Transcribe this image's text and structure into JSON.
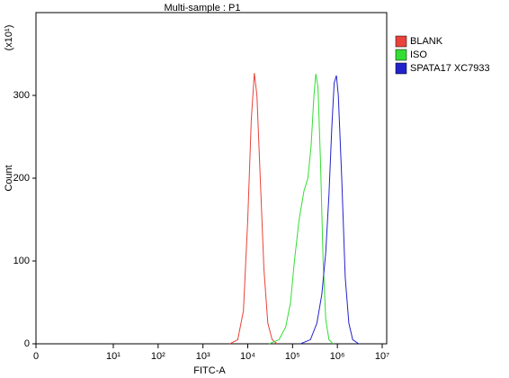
{
  "chart_data": {
    "type": "line",
    "title": "Multi-sample : P1",
    "x_label": "FITC-A",
    "y_label": "Count",
    "y_multiplier": "(x10¹)",
    "xscale": "log",
    "xlim": [
      0,
      10000000
    ],
    "ylim": [
      0,
      400
    ],
    "xticks": [
      0,
      {
        "value": 10,
        "label": "10¹"
      },
      {
        "value": 100,
        "label": "10²"
      },
      {
        "value": 1000,
        "label": "10³"
      },
      {
        "value": 10000,
        "label": "10⁴"
      },
      {
        "value": 100000,
        "label": "10⁵"
      },
      {
        "value": 1000000,
        "label": "10⁶"
      },
      {
        "value": 10000000,
        "label": "10⁷"
      }
    ],
    "yticks": [
      0,
      100,
      200,
      300
    ],
    "series": [
      {
        "name": "BLANK",
        "color": "#e8423a",
        "x": [
          4000,
          6000,
          8000,
          10000,
          12000,
          14000,
          16000,
          19000,
          23000,
          28000,
          35000,
          45000
        ],
        "values": [
          0,
          5,
          40,
          150,
          270,
          327,
          300,
          200,
          90,
          25,
          5,
          0
        ]
      },
      {
        "name": "ISO",
        "color": "#33dd33",
        "x": [
          30000,
          50000,
          70000,
          90000,
          110000,
          140000,
          180000,
          220000,
          260000,
          300000,
          330000,
          370000,
          420000,
          480000,
          550000,
          650000,
          800000
        ],
        "values": [
          0,
          5,
          20,
          50,
          100,
          150,
          185,
          200,
          240,
          300,
          326,
          310,
          220,
          100,
          30,
          5,
          0
        ]
      },
      {
        "name": "SPATA17 XC7933",
        "color": "#2222cc",
        "x": [
          150000,
          250000,
          350000,
          450000,
          550000,
          650000,
          750000,
          850000,
          950000,
          1050000,
          1250000,
          1500000,
          1800000,
          2200000,
          3000000
        ],
        "values": [
          0,
          5,
          25,
          60,
          110,
          180,
          260,
          315,
          324,
          300,
          200,
          80,
          25,
          5,
          0
        ]
      }
    ]
  }
}
